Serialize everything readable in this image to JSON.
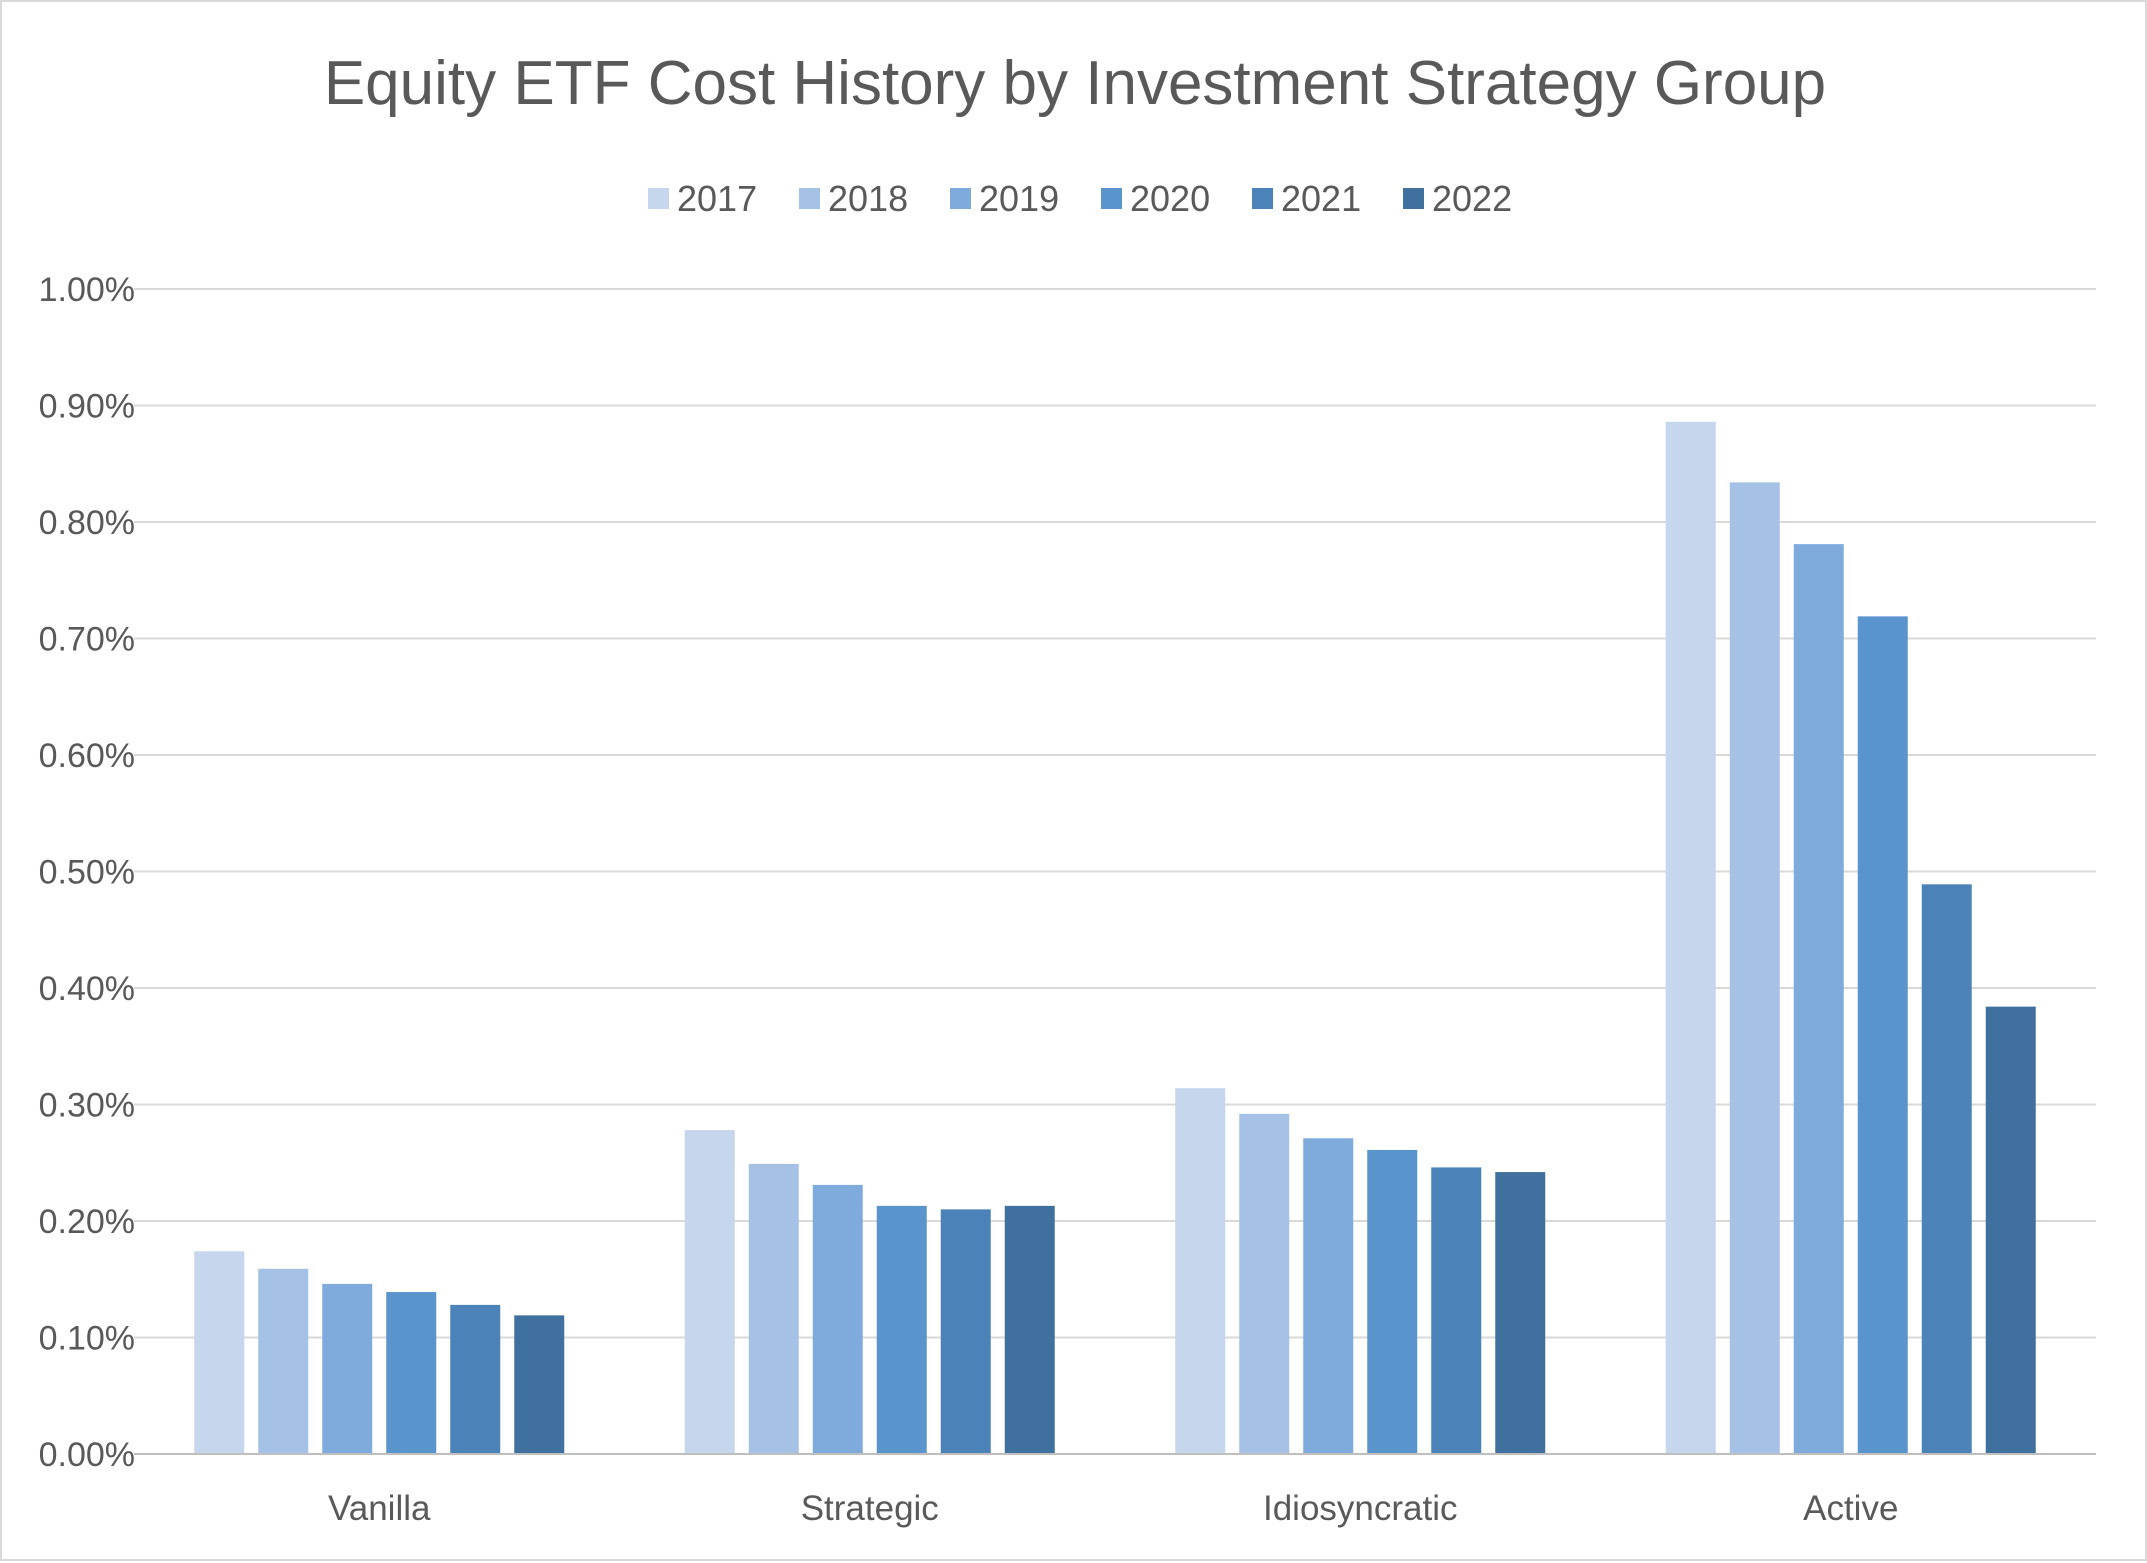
{
  "chart_data": {
    "type": "bar",
    "title": "Equity ETF Cost History by Investment Strategy Group",
    "xlabel": "",
    "ylabel": "",
    "categories": [
      "Vanilla",
      "Strategic",
      "Idiosyncratic",
      "Active"
    ],
    "series": [
      {
        "name": "2017",
        "color": "#c5d6ed",
        "values": [
          0.174,
          0.278,
          0.314,
          0.886
        ]
      },
      {
        "name": "2018",
        "color": "#a6c1e6",
        "values": [
          0.159,
          0.249,
          0.292,
          0.834
        ]
      },
      {
        "name": "2019",
        "color": "#7eabdb",
        "values": [
          0.146,
          0.231,
          0.271,
          0.781
        ]
      },
      {
        "name": "2020",
        "color": "#5994cc",
        "values": [
          0.139,
          0.213,
          0.261,
          0.719
        ]
      },
      {
        "name": "2021",
        "color": "#4b83b8",
        "values": [
          0.128,
          0.21,
          0.246,
          0.489
        ]
      },
      {
        "name": "2022",
        "color": "#40709d",
        "values": [
          0.119,
          0.213,
          0.242,
          0.384
        ]
      }
    ],
    "ylim": [
      0,
      1.0
    ],
    "yticks": [
      "0.00%",
      "0.10%",
      "0.20%",
      "0.30%",
      "0.40%",
      "0.50%",
      "0.60%",
      "0.70%",
      "0.80%",
      "0.90%",
      "1.00%"
    ],
    "ytick_values": [
      0,
      0.1,
      0.2,
      0.3,
      0.4,
      0.5,
      0.6,
      0.7,
      0.8,
      0.9,
      1.0
    ],
    "legend_position": "top",
    "grid": true,
    "colors": {
      "grid": "#d9d9d9",
      "axis": "#bfbfbf",
      "text": "#595959",
      "border": "#d9d9d9"
    }
  }
}
